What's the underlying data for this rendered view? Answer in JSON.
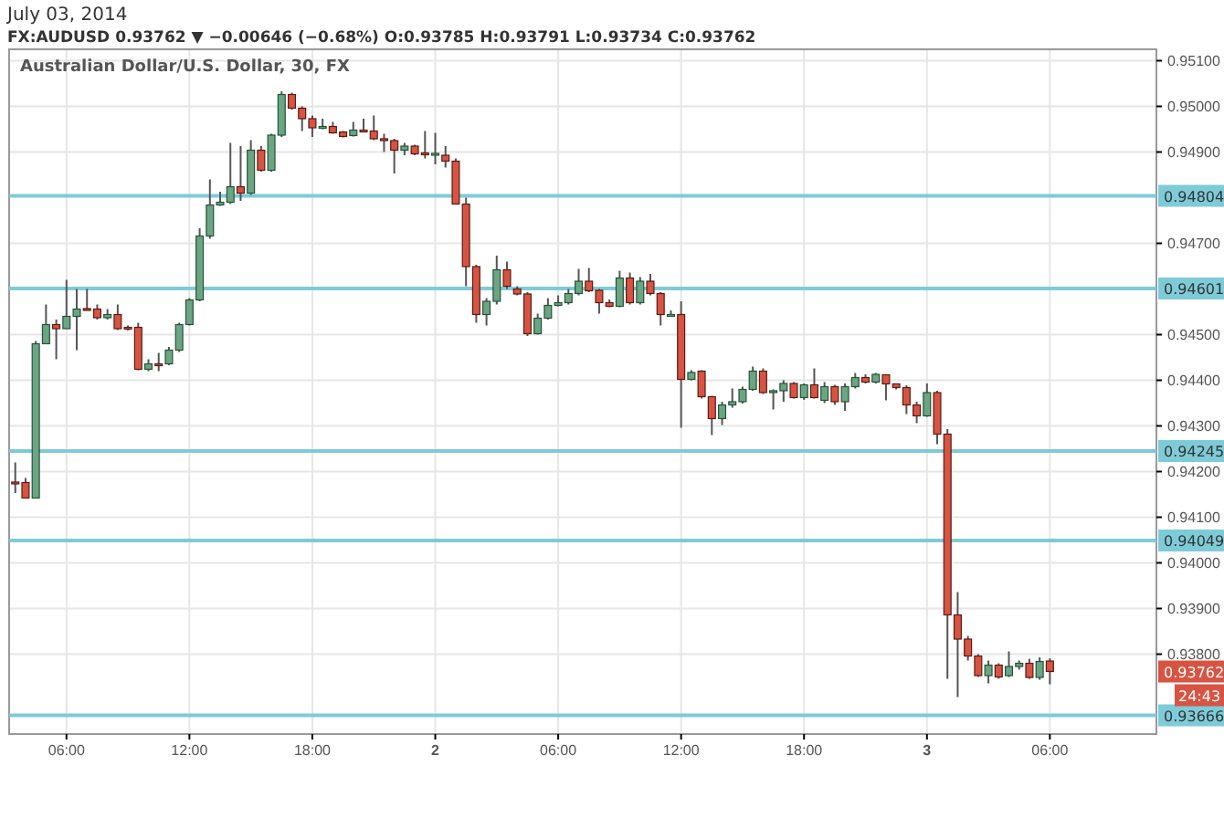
{
  "chart_data": {
    "type": "candlestick",
    "title": "July 03, 2014",
    "subtitle": "FX:AUDUSD 0.93762 ▼ −0.00646 (−0.68%) O:0.93785 H:0.93791 L:0.93734 C:0.93762",
    "x": [
      "2014-07-01T03:30",
      "2014-07-01T04:00",
      "2014-07-01T04:30",
      "2014-07-01T05:00",
      "2014-07-01T05:30",
      "2014-07-01T06:00",
      "2014-07-01T06:30",
      "2014-07-01T07:00",
      "2014-07-01T07:30",
      "2014-07-01T08:00",
      "2014-07-01T08:30",
      "2014-07-01T09:00",
      "2014-07-01T09:30",
      "2014-07-01T10:00",
      "2014-07-01T10:30",
      "2014-07-01T11:00",
      "2014-07-01T11:30",
      "2014-07-01T12:00",
      "2014-07-01T12:30",
      "2014-07-01T13:00",
      "2014-07-01T13:30",
      "2014-07-01T14:00",
      "2014-07-01T14:30",
      "2014-07-01T15:00",
      "2014-07-01T15:30",
      "2014-07-01T16:00",
      "2014-07-01T16:30",
      "2014-07-01T17:00",
      "2014-07-01T17:30",
      "2014-07-01T18:00",
      "2014-07-01T18:30",
      "2014-07-01T19:00",
      "2014-07-01T19:30",
      "2014-07-01T20:00",
      "2014-07-01T20:30",
      "2014-07-01T21:00",
      "2014-07-01T21:30",
      "2014-07-01T22:00",
      "2014-07-01T22:30",
      "2014-07-01T23:00",
      "2014-07-01T23:30",
      "2014-07-02T00:00",
      "2014-07-02T00:30",
      "2014-07-02T01:00",
      "2014-07-02T01:30",
      "2014-07-02T02:00",
      "2014-07-02T02:30",
      "2014-07-02T03:00",
      "2014-07-02T03:30",
      "2014-07-02T04:00",
      "2014-07-02T04:30",
      "2014-07-02T05:00",
      "2014-07-02T05:30",
      "2014-07-02T06:00",
      "2014-07-02T06:30",
      "2014-07-02T07:00",
      "2014-07-02T07:30",
      "2014-07-02T08:00",
      "2014-07-02T08:30",
      "2014-07-02T09:00",
      "2014-07-02T09:30",
      "2014-07-02T10:00",
      "2014-07-02T10:30",
      "2014-07-02T11:00",
      "2014-07-02T11:30",
      "2014-07-02T12:00",
      "2014-07-02T12:30",
      "2014-07-02T13:00",
      "2014-07-02T13:30",
      "2014-07-02T14:00",
      "2014-07-02T14:30",
      "2014-07-02T15:00",
      "2014-07-02T15:30",
      "2014-07-02T16:00",
      "2014-07-02T16:30",
      "2014-07-02T17:00",
      "2014-07-02T17:30",
      "2014-07-02T18:00",
      "2014-07-02T18:30",
      "2014-07-02T19:00",
      "2014-07-02T19:30",
      "2014-07-02T20:00",
      "2014-07-02T20:30",
      "2014-07-02T21:00",
      "2014-07-02T21:30",
      "2014-07-02T22:00",
      "2014-07-02T22:30",
      "2014-07-02T23:00",
      "2014-07-02T23:30",
      "2014-07-03T00:00",
      "2014-07-03T00:30",
      "2014-07-03T01:00",
      "2014-07-03T01:30",
      "2014-07-03T02:00",
      "2014-07-03T02:30",
      "2014-07-03T03:00",
      "2014-07-03T03:30",
      "2014-07-03T04:00",
      "2014-07-03T04:30",
      "2014-07-03T05:00",
      "2014-07-03T05:30",
      "2014-07-03T06:00"
    ],
    "ohlc": [
      [
        0.94177,
        0.9422,
        0.94153,
        0.94174
      ],
      [
        0.94176,
        0.94186,
        0.94142,
        0.94142
      ],
      [
        0.94142,
        0.94486,
        0.94142,
        0.9448
      ],
      [
        0.9448,
        0.94566,
        0.9448,
        0.94522
      ],
      [
        0.94522,
        0.94533,
        0.94446,
        0.94513
      ],
      [
        0.94513,
        0.9462,
        0.94513,
        0.9454
      ],
      [
        0.9454,
        0.946,
        0.94466,
        0.94556
      ],
      [
        0.94557,
        0.946,
        0.94553,
        0.94554
      ],
      [
        0.94556,
        0.94566,
        0.94533,
        0.94537
      ],
      [
        0.94537,
        0.94556,
        0.94533,
        0.94544
      ],
      [
        0.94544,
        0.94566,
        0.9451,
        0.94513
      ],
      [
        0.94516,
        0.9452,
        0.94509,
        0.94512
      ],
      [
        0.94516,
        0.94526,
        0.94422,
        0.94424
      ],
      [
        0.94424,
        0.94446,
        0.9442,
        0.94436
      ],
      [
        0.94436,
        0.9446,
        0.9442,
        0.94433
      ],
      [
        0.94436,
        0.94473,
        0.94433,
        0.94466
      ],
      [
        0.94466,
        0.94526,
        0.94462,
        0.94522
      ],
      [
        0.94522,
        0.9458,
        0.9452,
        0.94576
      ],
      [
        0.94576,
        0.94733,
        0.94573,
        0.94716
      ],
      [
        0.94716,
        0.9484,
        0.9471,
        0.94784
      ],
      [
        0.94784,
        0.94813,
        0.94782,
        0.9479
      ],
      [
        0.9479,
        0.9492,
        0.94786,
        0.94824
      ],
      [
        0.94824,
        0.94913,
        0.94793,
        0.9481
      ],
      [
        0.9481,
        0.94926,
        0.94806,
        0.94904
      ],
      [
        0.94904,
        0.94913,
        0.94857,
        0.9486
      ],
      [
        0.9486,
        0.9494,
        0.94857,
        0.94937
      ],
      [
        0.94937,
        0.95033,
        0.94933,
        0.95026
      ],
      [
        0.95026,
        0.9503,
        0.94993,
        0.94996
      ],
      [
        0.94996,
        0.95,
        0.94946,
        0.94973
      ],
      [
        0.94973,
        0.9498,
        0.94933,
        0.94953
      ],
      [
        0.94953,
        0.94973,
        0.9495,
        0.94956
      ],
      [
        0.94956,
        0.94966,
        0.9494,
        0.94942
      ],
      [
        0.94944,
        0.94946,
        0.94932,
        0.94934
      ],
      [
        0.94936,
        0.94966,
        0.94934,
        0.94948
      ],
      [
        0.94948,
        0.94973,
        0.94944,
        0.94945
      ],
      [
        0.94946,
        0.9498,
        0.94926,
        0.94929
      ],
      [
        0.94929,
        0.9494,
        0.949,
        0.94926
      ],
      [
        0.94925,
        0.94929,
        0.94853,
        0.94904
      ],
      [
        0.94904,
        0.9492,
        0.94893,
        0.94913
      ],
      [
        0.94913,
        0.94916,
        0.94893,
        0.94896
      ],
      [
        0.94898,
        0.94946,
        0.94886,
        0.94896
      ],
      [
        0.94894,
        0.94942,
        0.94873,
        0.94897
      ],
      [
        0.94893,
        0.94913,
        0.94866,
        0.9488
      ],
      [
        0.9488,
        0.94886,
        0.94786,
        0.94786
      ],
      [
        0.94786,
        0.948,
        0.94606,
        0.94649
      ],
      [
        0.94649,
        0.94653,
        0.94526,
        0.94544
      ],
      [
        0.94544,
        0.9458,
        0.9452,
        0.94573
      ],
      [
        0.94573,
        0.94673,
        0.94566,
        0.94642
      ],
      [
        0.94642,
        0.9466,
        0.946,
        0.94606
      ],
      [
        0.946,
        0.94606,
        0.94586,
        0.94589
      ],
      [
        0.94589,
        0.94593,
        0.94497,
        0.94502
      ],
      [
        0.94502,
        0.94546,
        0.945,
        0.94536
      ],
      [
        0.94536,
        0.9458,
        0.94533,
        0.94564
      ],
      [
        0.94564,
        0.94586,
        0.94562,
        0.9457
      ],
      [
        0.9457,
        0.946,
        0.94566,
        0.9459
      ],
      [
        0.9459,
        0.94644,
        0.94586,
        0.94617
      ],
      [
        0.94617,
        0.94646,
        0.94593,
        0.94596
      ],
      [
        0.94597,
        0.946,
        0.94546,
        0.9457
      ],
      [
        0.9457,
        0.94577,
        0.9456,
        0.94562
      ],
      [
        0.94562,
        0.9464,
        0.9456,
        0.94624
      ],
      [
        0.94624,
        0.94636,
        0.94566,
        0.9457
      ],
      [
        0.9457,
        0.94626,
        0.94566,
        0.94617
      ],
      [
        0.94617,
        0.94633,
        0.94586,
        0.9459
      ],
      [
        0.9459,
        0.94593,
        0.9452,
        0.94544
      ],
      [
        0.94542,
        0.94553,
        0.9454,
        0.94544
      ],
      [
        0.94544,
        0.94573,
        0.94296,
        0.94402
      ],
      [
        0.94402,
        0.94422,
        0.944,
        0.94417
      ],
      [
        0.9442,
        0.94422,
        0.9436,
        0.94364
      ],
      [
        0.94364,
        0.94366,
        0.9428,
        0.94316
      ],
      [
        0.94316,
        0.94353,
        0.94302,
        0.94346
      ],
      [
        0.94346,
        0.94382,
        0.9434,
        0.94353
      ],
      [
        0.94353,
        0.94386,
        0.94349,
        0.9438
      ],
      [
        0.9438,
        0.9443,
        0.94377,
        0.9442
      ],
      [
        0.9442,
        0.94426,
        0.9437,
        0.94373
      ],
      [
        0.94376,
        0.9438,
        0.94336,
        0.94377
      ],
      [
        0.94377,
        0.944,
        0.94353,
        0.94393
      ],
      [
        0.94393,
        0.94396,
        0.9436,
        0.94362
      ],
      [
        0.94362,
        0.94393,
        0.94357,
        0.9439
      ],
      [
        0.9439,
        0.94426,
        0.9436,
        0.94362
      ],
      [
        0.94356,
        0.94396,
        0.9435,
        0.94386
      ],
      [
        0.94386,
        0.9439,
        0.94346,
        0.94353
      ],
      [
        0.94353,
        0.94393,
        0.94333,
        0.94386
      ],
      [
        0.94386,
        0.94416,
        0.94382,
        0.94406
      ],
      [
        0.94406,
        0.94413,
        0.94393,
        0.94396
      ],
      [
        0.94396,
        0.94416,
        0.94393,
        0.94413
      ],
      [
        0.94412,
        0.94413,
        0.94356,
        0.94392
      ],
      [
        0.94392,
        0.94393,
        0.9438,
        0.94384
      ],
      [
        0.94384,
        0.94389,
        0.94326,
        0.94346
      ],
      [
        0.94346,
        0.94353,
        0.94306,
        0.94322
      ],
      [
        0.94322,
        0.94393,
        0.9432,
        0.94373
      ],
      [
        0.94373,
        0.94377,
        0.9426,
        0.94282
      ],
      [
        0.94282,
        0.94293,
        0.93746,
        0.93886
      ],
      [
        0.93886,
        0.93936,
        0.93706,
        0.93833
      ],
      [
        0.93833,
        0.9384,
        0.93786,
        0.93796
      ],
      [
        0.93796,
        0.938,
        0.9375,
        0.93753
      ],
      [
        0.93753,
        0.93786,
        0.93736,
        0.93776
      ],
      [
        0.93776,
        0.9378,
        0.93746,
        0.9375
      ],
      [
        0.93753,
        0.93806,
        0.9375,
        0.93773
      ],
      [
        0.93773,
        0.93786,
        0.93766,
        0.9378
      ],
      [
        0.9378,
        0.9379,
        0.93746,
        0.93749
      ],
      [
        0.93749,
        0.93793,
        0.93744,
        0.93784
      ],
      [
        0.93785,
        0.93791,
        0.93734,
        0.93762
      ]
    ],
    "xlim": [
      "2014-07-01T03:12",
      "2014-07-03T11:12"
    ],
    "xticks": [
      {
        "value": "2014-07-01T06:00",
        "label": "06:00"
      },
      {
        "value": "2014-07-01T12:00",
        "label": "12:00"
      },
      {
        "value": "2014-07-01T18:00",
        "label": "18:00"
      },
      {
        "value": "2014-07-02T00:00",
        "label": "2"
      },
      {
        "value": "2014-07-02T06:00",
        "label": "06:00"
      },
      {
        "value": "2014-07-02T12:00",
        "label": "12:00"
      },
      {
        "value": "2014-07-02T18:00",
        "label": "18:00"
      },
      {
        "value": "2014-07-03T00:00",
        "label": "3"
      },
      {
        "value": "2014-07-03T06:00",
        "label": "06:00"
      }
    ],
    "ylim": [
      0.93625,
      0.95125
    ],
    "yticks": [
      {
        "value": 0.951,
        "label": "0.95100"
      },
      {
        "value": 0.95,
        "label": "0.95000"
      },
      {
        "value": 0.949,
        "label": "0.94900"
      },
      {
        "value": 0.947,
        "label": "0.94700"
      },
      {
        "value": 0.945,
        "label": "0.94500"
      },
      {
        "value": 0.944,
        "label": "0.94400"
      },
      {
        "value": 0.943,
        "label": "0.94300"
      },
      {
        "value": 0.942,
        "label": "0.94200"
      },
      {
        "value": 0.941,
        "label": "0.94100"
      },
      {
        "value": 0.94,
        "label": "0.94000"
      },
      {
        "value": 0.939,
        "label": "0.93900"
      },
      {
        "value": 0.938,
        "label": "0.93800"
      }
    ],
    "grid": true,
    "ref_lines": [
      {
        "axis": "y",
        "value": 0.94804,
        "label": "0.94804",
        "color": "#7ecbd8"
      },
      {
        "axis": "y",
        "value": 0.94601,
        "label": "0.94601",
        "color": "#7ecbd8"
      },
      {
        "axis": "y",
        "value": 0.94245,
        "label": "0.94245",
        "color": "#7ecbd8"
      },
      {
        "axis": "y",
        "value": 0.94049,
        "label": "0.94049",
        "color": "#7ecbd8"
      },
      {
        "axis": "y",
        "value": 0.93666,
        "label": "0.93666",
        "color": "#7ecbd8"
      }
    ],
    "annotations": [
      "Australian Dollar/U.S. Dollar, 30, FX",
      {
        "text": "0.93762",
        "y": 0.93762
      },
      "24:43"
    ]
  }
}
